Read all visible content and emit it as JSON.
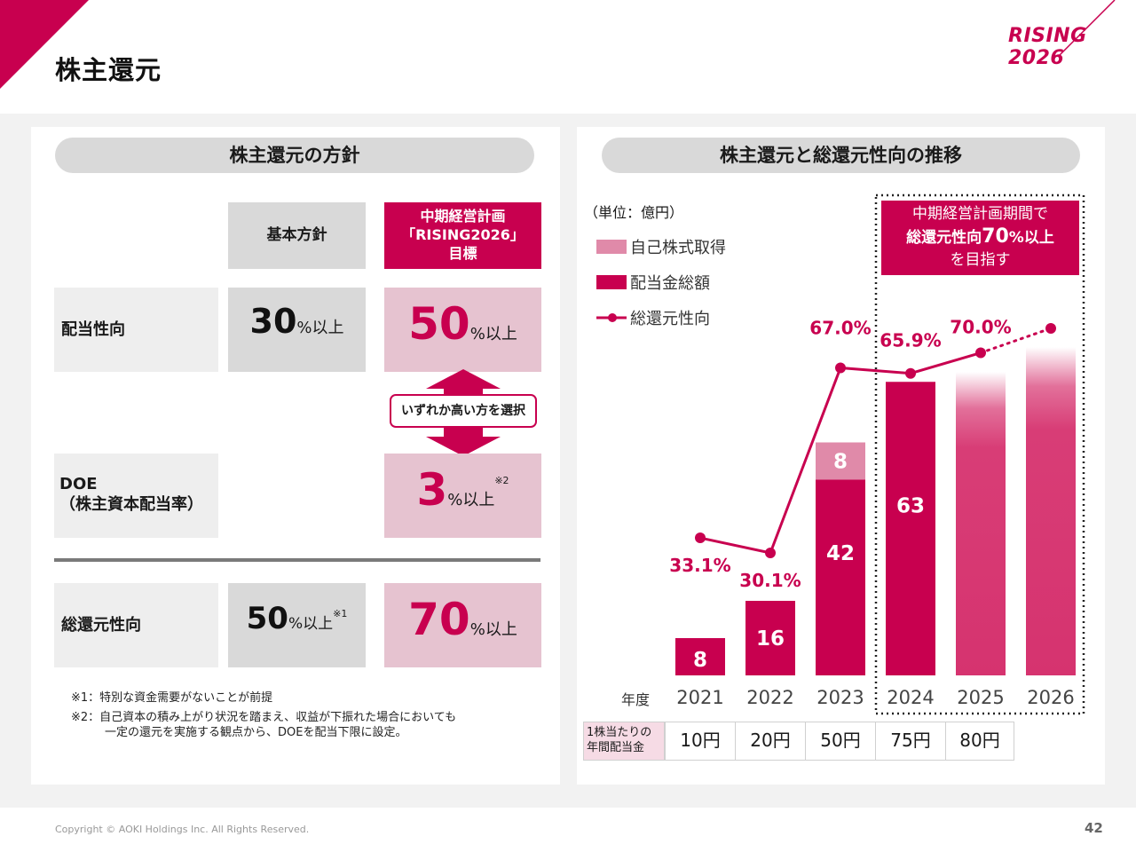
{
  "page": {
    "title": "株主還元",
    "logo": "RISING 2026",
    "copyright": "Copyright © AOKI Holdings Inc. All Rights Reserved.",
    "page_number": "42"
  },
  "left": {
    "heading": "株主還元の方針",
    "col_basic": "基本方針",
    "col_target_l1": "中期経営計画",
    "col_target_l2": "「RISING2026」",
    "col_target_l3": "目標",
    "row1_label": "配当性向",
    "row1_basic_num": "30",
    "row1_basic_unit": "%以上",
    "row1_target_num": "50",
    "row1_target_unit": "%以上",
    "choice": "いずれか高い方を選択",
    "row2_label_l1": "DOE",
    "row2_label_l2": "（株主資本配当率）",
    "row2_target_num": "3",
    "row2_target_unit": "%以上",
    "row2_target_note": "※2",
    "row3_label": "総還元性向",
    "row3_basic_num": "50",
    "row3_basic_unit": "%以上",
    "row3_basic_note": "※1",
    "row3_target_num": "70",
    "row3_target_unit": "%以上",
    "note1": "※1：特別な資金需要がないことが前提",
    "note2_l1": "※2：自己資本の積み上がり状況を踏まえ、収益が下振れた場合においても",
    "note2_l2": "一定の還元を実施する観点から、DOEを配当下限に設定。"
  },
  "right": {
    "heading": "株主還元と総還元性向の推移",
    "unit": "（単位：億円）",
    "legend": [
      "自己株式取得",
      "配当金総額",
      "総還元性向"
    ],
    "callout_l1": "中期経営計画期間で",
    "callout_l2a": "総還元性向",
    "callout_l2b": "70",
    "callout_l2c": "%以上",
    "callout_l3": "を目指す",
    "year_label": "年度",
    "dps_label_l1": "1株当たりの",
    "dps_label_l2": "年間配当金",
    "dps": [
      "10円",
      "20円",
      "50円",
      "75円",
      "80円"
    ]
  },
  "chart_data": {
    "type": "bar",
    "categories": [
      "2021",
      "2022",
      "2023",
      "2024",
      "2025",
      "2026"
    ],
    "series": [
      {
        "name": "配当金総額",
        "values": [
          8,
          16,
          42,
          63,
          null,
          null
        ]
      },
      {
        "name": "自己株式取得",
        "values": [
          null,
          null,
          8,
          null,
          null,
          null
        ]
      },
      {
        "name": "総還元性向",
        "type": "line",
        "values": [
          33.1,
          30.1,
          67.0,
          65.9,
          70.0,
          null
        ],
        "labels": [
          "33.1%",
          "30.1%",
          "67.0%",
          "65.9%",
          "70.0%",
          ""
        ]
      }
    ],
    "projected_years": [
      "2025",
      "2026"
    ],
    "colors": {
      "dividend": "#c8004f",
      "buyback": "#e08aa9",
      "line": "#c8004f"
    }
  }
}
